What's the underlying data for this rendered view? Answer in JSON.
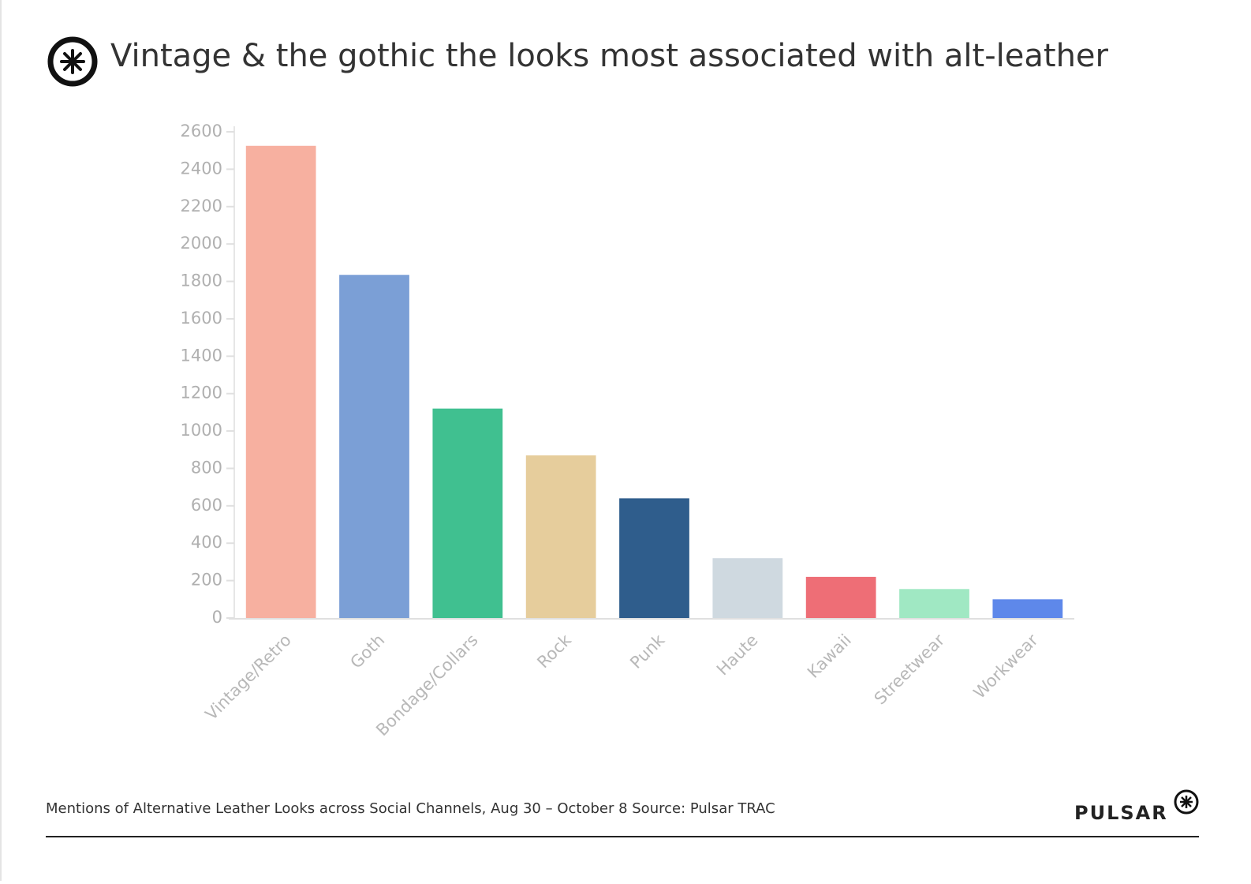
{
  "chart_data": {
    "type": "bar",
    "title": "Vintage & the gothic the looks most associated with alt-leather",
    "categories": [
      "Vintage/Retro",
      "Goth",
      "Bondage/Collars",
      "Rock",
      "Punk",
      "Haute",
      "Kawaii",
      "Streetwear",
      "Workwear"
    ],
    "values": [
      2525,
      1835,
      1120,
      870,
      640,
      320,
      220,
      155,
      100
    ],
    "colors": [
      "#f7b0a0",
      "#7b9fd6",
      "#40c090",
      "#e6cd9c",
      "#2f5d8c",
      "#cfd9e0",
      "#ee6e76",
      "#a0e8c3",
      "#5e88ea"
    ],
    "ylim": [
      0,
      2600
    ],
    "yticks": [
      0,
      200,
      400,
      600,
      800,
      1000,
      1200,
      1400,
      1600,
      1800,
      2000,
      2200,
      2400,
      2600
    ],
    "caption": "Mentions of Alternative Leather Looks across Social Channels, Aug 30 – October 8 Source: Pulsar TRAC",
    "brand": "PULSAR"
  }
}
